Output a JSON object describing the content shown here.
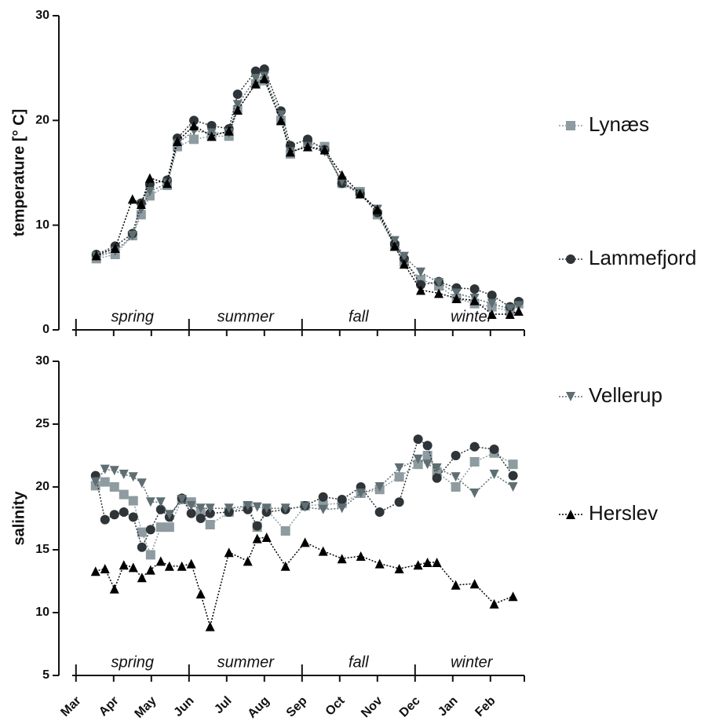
{
  "chart_data": {
    "type": "line",
    "xlim": [
      -0.1,
      11.9
    ],
    "xticks": [
      {
        "value": 0,
        "label": "Mar"
      },
      {
        "value": 1,
        "label": "Apr"
      },
      {
        "value": 2,
        "label": "May"
      },
      {
        "value": 3,
        "label": "Jun"
      },
      {
        "value": 4,
        "label": "Jul"
      },
      {
        "value": 5,
        "label": "Aug"
      },
      {
        "value": 6,
        "label": "Sep"
      },
      {
        "value": 7,
        "label": "Oct"
      },
      {
        "value": 8,
        "label": "Nov"
      },
      {
        "value": 9,
        "label": "Dec"
      },
      {
        "value": 10,
        "label": "Jan"
      },
      {
        "value": 11,
        "label": "Feb"
      }
    ],
    "legend": "right",
    "series": [
      {
        "name": "Lynæs",
        "color": "#8e9ba0",
        "marker": "square"
      },
      {
        "name": "Lammefjord",
        "color": "#2e3437",
        "marker": "circle"
      },
      {
        "name": "Vellerup",
        "color": "#5f6e72",
        "marker": "triangle-down"
      },
      {
        "name": "Herslev",
        "color": "#000000",
        "marker": "triangle-up"
      }
    ],
    "panels": [
      {
        "y_label": "temperature [° C]",
        "ylim": [
          0,
          30
        ],
        "yticks": [
          0,
          10,
          20,
          30
        ],
        "annotations": [
          "spring",
          "summer",
          "fall",
          "winter"
        ],
        "x": [
          0.54,
          1.04,
          1.5,
          1.73,
          1.96,
          2.42,
          2.69,
          3.13,
          3.6,
          4.06,
          4.29,
          4.77,
          5.0,
          5.44,
          5.69,
          6.15,
          6.6,
          7.06,
          7.54,
          8.0,
          8.46,
          8.71,
          9.15,
          9.63,
          10.1,
          10.58,
          11.04,
          11.52,
          11.75
        ],
        "values": [
          [
            6.8,
            7.2,
            9.0,
            11.0,
            12.8,
            13.8,
            17.5,
            18.2,
            18.5,
            18.5,
            21.0,
            23.5,
            23.8,
            20.0,
            16.8,
            17.8,
            17.5,
            14.0,
            13.2,
            11.0,
            8.0,
            6.5,
            4.8,
            4.2,
            3.0,
            2.5,
            2.2,
            1.8,
            2.5
          ],
          [
            7.2,
            8.0,
            9.2,
            12.1,
            13.9,
            14.3,
            18.3,
            20.0,
            19.5,
            19.2,
            22.5,
            24.7,
            24.9,
            20.9,
            17.6,
            18.2,
            17.2,
            14.0,
            13.0,
            11.2,
            8.2,
            6.8,
            4.3,
            4.6,
            4.0,
            3.9,
            3.3,
            2.2,
            2.7
          ],
          [
            7.0,
            7.5,
            9.0,
            11.5,
            13.2,
            14.0,
            17.8,
            19.0,
            18.8,
            18.8,
            21.5,
            24.0,
            24.2,
            20.5,
            17.0,
            17.5,
            17.0,
            14.2,
            13.0,
            11.5,
            8.5,
            7.0,
            5.5,
            4.5,
            3.5,
            3.0,
            2.5,
            2.0,
            2.3
          ],
          [
            7.1,
            7.8,
            12.5,
            12.0,
            14.5,
            14.0,
            18.0,
            19.5,
            18.5,
            19.0,
            21.0,
            23.5,
            24.0,
            20.0,
            17.0,
            17.5,
            17.2,
            14.8,
            13.0,
            11.5,
            8.0,
            6.3,
            3.8,
            3.5,
            3.0,
            2.8,
            1.5,
            1.5,
            1.8
          ]
        ]
      },
      {
        "y_label": "salinity",
        "ylim": [
          5,
          30
        ],
        "yticks": [
          5,
          10,
          15,
          20,
          25,
          30
        ],
        "annotations": [
          "spring",
          "summer",
          "fall",
          "winter"
        ],
        "x": [
          0.52,
          0.77,
          1.02,
          1.27,
          1.52,
          1.75,
          1.98,
          2.25,
          2.48,
          2.81,
          3.06,
          3.31,
          3.56,
          4.06,
          4.56,
          4.81,
          5.06,
          5.56,
          6.08,
          6.56,
          7.06,
          7.56,
          8.06,
          8.58,
          9.08,
          9.33,
          9.58,
          10.08,
          10.58,
          11.1,
          11.6
        ],
        "values": [
          [
            20.1,
            20.4,
            20.0,
            19.4,
            18.9,
            16.4,
            14.6,
            16.8,
            16.8,
            19.0,
            18.8,
            18.0,
            17.0,
            18.0,
            18.5,
            16.8,
            18.2,
            16.5,
            18.5,
            18.6,
            18.7,
            19.5,
            19.8,
            20.8,
            21.8,
            22.5,
            21.2,
            20.0,
            22.0,
            22.7,
            21.8
          ],
          [
            20.9,
            17.4,
            17.8,
            18.0,
            17.6,
            15.2,
            16.6,
            18.2,
            17.6,
            19.1,
            17.9,
            17.5,
            17.9,
            18.0,
            18.2,
            16.9,
            18.0,
            18.2,
            18.5,
            19.2,
            19.0,
            20.0,
            18.0,
            18.8,
            23.8,
            23.3,
            20.7,
            22.5,
            23.2,
            23.0,
            20.9
          ],
          [
            20.4,
            21.4,
            21.3,
            21.0,
            20.8,
            20.3,
            18.8,
            18.8,
            17.8,
            19.0,
            18.5,
            18.3,
            18.3,
            18.3,
            18.5,
            18.4,
            18.3,
            18.3,
            18.4,
            18.2,
            18.3,
            19.5,
            20.0,
            21.5,
            22.2,
            21.8,
            21.5,
            20.8,
            19.5,
            21.0,
            20.0
          ],
          [
            13.3,
            13.5,
            11.9,
            13.8,
            13.6,
            12.8,
            13.4,
            14.1,
            13.7,
            13.7,
            13.9,
            11.5,
            8.9,
            14.8,
            14.1,
            15.9,
            16.0,
            13.7,
            15.6,
            14.9,
            14.3,
            14.5,
            13.9,
            13.5,
            13.8,
            14.0,
            14.0,
            12.2,
            12.3,
            10.7,
            11.3
          ]
        ]
      }
    ]
  }
}
